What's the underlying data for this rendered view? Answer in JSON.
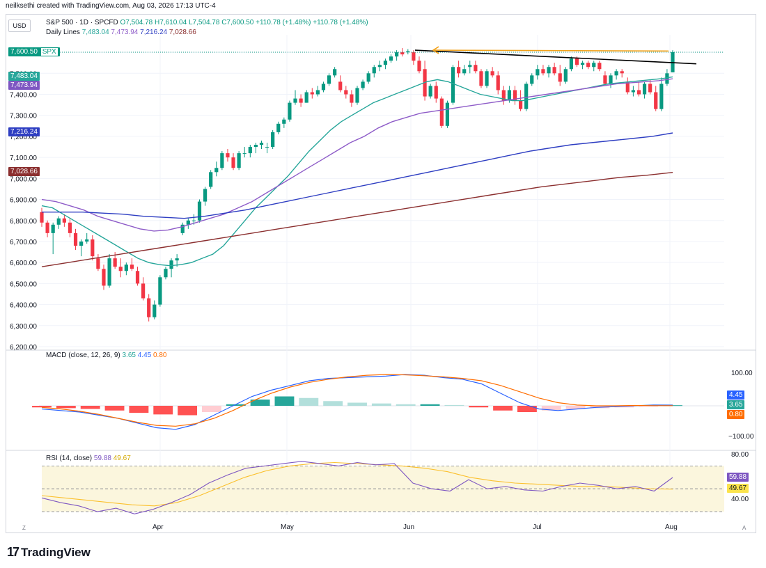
{
  "header": {
    "credit": "neilksethi created with TradingView.com, Aug 03, 2026 17:13 UTC-4"
  },
  "toolbar": {
    "currency": "USD"
  },
  "legend": {
    "symbol": "S&P 500 · 1D · SPCFD",
    "ohlc": "O7,504.78 H7,610.04 L7,504.78 C7,600.50 +110.78 (+1.48%) +110.78 (+1.48%)",
    "ma_title": "Daily Lines",
    "ma_values": [
      "7,483.04",
      "7,473.94",
      "7,216.24",
      "7,028.66"
    ]
  },
  "price_tags": {
    "last": "7,600.50",
    "last_symbol": "SPX",
    "ma20": "7,483.04",
    "ma50": "7,473.94",
    "ma100": "7,216.24",
    "ma200": "7,028.66"
  },
  "macd": {
    "label": "MACD (close, 12, 26, 9)",
    "v1": "3.65",
    "v2": "4.45",
    "v3": "0.80",
    "tags": {
      "macd": "4.45",
      "hist": "3.65",
      "signal": "0.80"
    },
    "axis": [
      "100.00",
      "−100.00"
    ]
  },
  "rsi": {
    "label": "RSI (14, close)",
    "v1": "59.88",
    "v2": "49.67",
    "tags": {
      "rsi": "59.88",
      "ma": "49.67"
    },
    "axis": [
      "80.00",
      "40.00"
    ]
  },
  "x_axis": [
    "Apr",
    "May",
    "Jun",
    "Jul",
    "Aug"
  ],
  "corners": {
    "z": "Z",
    "a": "A"
  },
  "brand": {
    "logo": "17",
    "name": "TradingView"
  },
  "colors": {
    "up": "#089981",
    "down": "#f23645",
    "ma20": "#26a69a",
    "ma50": "#8e5cc8",
    "ma100": "#2e3ec2",
    "ma200": "#8b2f2f",
    "macd": "#2962ff",
    "signal": "#ff6d00",
    "rsi": "#7e57c2",
    "rsima": "#fbc02d",
    "trend": "#000000",
    "arrow": "#f2a21b"
  },
  "chart_data": [
    {
      "type": "candlestick",
      "title": "S&P 500 · 1D · SPCFD",
      "ylim": [
        6200,
        7650
      ],
      "y_ticks": [
        "6,200.00",
        "6,300.00",
        "6,400.00",
        "6,500.00",
        "6,600.00",
        "6,700.00",
        "6,800.00",
        "6,900.00",
        "7,000.00",
        "7,100.00",
        "7,200.00",
        "7,300.00",
        "7,400.00",
        "7,500.00",
        "7,600.00"
      ],
      "x_labels": [
        "Apr",
        "May",
        "Jun",
        "Jul",
        "Aug"
      ],
      "candles_ohlc": [
        [
          6840,
          6860,
          6770,
          6790
        ],
        [
          6790,
          6800,
          6720,
          6740
        ],
        [
          6740,
          6790,
          6640,
          6780
        ],
        [
          6780,
          6820,
          6760,
          6810
        ],
        [
          6810,
          6830,
          6770,
          6790
        ],
        [
          6790,
          6810,
          6720,
          6740
        ],
        [
          6740,
          6760,
          6660,
          6680
        ],
        [
          6680,
          6710,
          6630,
          6700
        ],
        [
          6700,
          6740,
          6690,
          6710
        ],
        [
          6710,
          6730,
          6610,
          6630
        ],
        [
          6620,
          6640,
          6560,
          6570
        ],
        [
          6570,
          6590,
          6470,
          6490
        ],
        [
          6490,
          6640,
          6480,
          6620
        ],
        [
          6620,
          6650,
          6570,
          6580
        ],
        [
          6580,
          6620,
          6530,
          6560
        ],
        [
          6560,
          6600,
          6540,
          6590
        ],
        [
          6590,
          6620,
          6560,
          6570
        ],
        [
          6560,
          6580,
          6490,
          6500
        ],
        [
          6500,
          6530,
          6420,
          6430
        ],
        [
          6430,
          6450,
          6320,
          6340
        ],
        [
          6340,
          6420,
          6330,
          6400
        ],
        [
          6400,
          6540,
          6390,
          6530
        ],
        [
          6530,
          6580,
          6520,
          6570
        ],
        [
          6570,
          6620,
          6530,
          6610
        ],
        [
          6610,
          6640,
          6580,
          6620
        ],
        [
          6740,
          6790,
          6730,
          6780
        ],
        [
          6780,
          6810,
          6760,
          6800
        ],
        [
          6800,
          6830,
          6780,
          6800
        ],
        [
          6800,
          6900,
          6790,
          6890
        ],
        [
          6890,
          6960,
          6870,
          6950
        ],
        [
          6960,
          7040,
          6950,
          7030
        ],
        [
          7030,
          7080,
          7010,
          7050
        ],
        [
          7050,
          7130,
          7040,
          7120
        ],
        [
          7120,
          7140,
          7080,
          7100
        ],
        [
          7100,
          7120,
          7040,
          7050
        ],
        [
          7050,
          7130,
          7040,
          7120
        ],
        [
          7120,
          7150,
          7100,
          7120
        ],
        [
          7120,
          7160,
          7100,
          7150
        ],
        [
          7150,
          7170,
          7120,
          7160
        ],
        [
          7160,
          7180,
          7140,
          7170
        ],
        [
          7150,
          7170,
          7120,
          7150
        ],
        [
          7150,
          7230,
          7140,
          7220
        ],
        [
          7220,
          7270,
          7210,
          7260
        ],
        [
          7260,
          7290,
          7240,
          7280
        ],
        [
          7280,
          7370,
          7270,
          7360
        ],
        [
          7360,
          7420,
          7350,
          7380
        ],
        [
          7380,
          7400,
          7340,
          7360
        ],
        [
          7360,
          7420,
          7360,
          7410
        ],
        [
          7410,
          7430,
          7380,
          7400
        ],
        [
          7400,
          7440,
          7390,
          7420
        ],
        [
          7420,
          7460,
          7410,
          7450
        ],
        [
          7450,
          7500,
          7440,
          7490
        ],
        [
          7490,
          7530,
          7480,
          7520
        ],
        [
          7460,
          7490,
          7410,
          7420
        ],
        [
          7420,
          7440,
          7380,
          7400
        ],
        [
          7400,
          7420,
          7340,
          7360
        ],
        [
          7360,
          7440,
          7350,
          7430
        ],
        [
          7430,
          7470,
          7420,
          7460
        ],
        [
          7460,
          7510,
          7450,
          7500
        ],
        [
          7500,
          7540,
          7480,
          7530
        ],
        [
          7530,
          7560,
          7510,
          7540
        ],
        [
          7540,
          7570,
          7520,
          7560
        ],
        [
          7560,
          7590,
          7550,
          7580
        ],
        [
          7580,
          7610,
          7560,
          7600
        ],
        [
          7600,
          7620,
          7580,
          7590
        ],
        [
          7600,
          7615,
          7590,
          7605
        ],
        [
          7600,
          7610,
          7540,
          7560
        ],
        [
          7560,
          7580,
          7500,
          7510
        ],
        [
          7520,
          7560,
          7370,
          7390
        ],
        [
          7390,
          7450,
          7380,
          7440
        ],
        [
          7440,
          7460,
          7360,
          7380
        ],
        [
          7380,
          7390,
          7240,
          7250
        ],
        [
          7250,
          7370,
          7240,
          7360
        ],
        [
          7360,
          7540,
          7350,
          7530
        ],
        [
          7530,
          7560,
          7480,
          7500
        ],
        [
          7500,
          7540,
          7490,
          7520
        ],
        [
          7530,
          7560,
          7500,
          7540
        ],
        [
          7540,
          7560,
          7500,
          7510
        ],
        [
          7510,
          7520,
          7430,
          7440
        ],
        [
          7440,
          7520,
          7430,
          7510
        ],
        [
          7510,
          7530,
          7480,
          7490
        ],
        [
          7490,
          7510,
          7400,
          7420
        ],
        [
          7420,
          7440,
          7350,
          7370
        ],
        [
          7370,
          7440,
          7360,
          7420
        ],
        [
          7420,
          7440,
          7350,
          7370
        ],
        [
          7370,
          7420,
          7320,
          7330
        ],
        [
          7330,
          7460,
          7320,
          7450
        ],
        [
          7450,
          7500,
          7440,
          7490
        ],
        [
          7490,
          7540,
          7470,
          7520
        ],
        [
          7520,
          7540,
          7490,
          7500
        ],
        [
          7500,
          7540,
          7480,
          7530
        ],
        [
          7530,
          7550,
          7490,
          7500
        ],
        [
          7500,
          7540,
          7440,
          7460
        ],
        [
          7460,
          7530,
          7450,
          7520
        ],
        [
          7520,
          7580,
          7510,
          7570
        ],
        [
          7570,
          7580,
          7530,
          7540
        ],
        [
          7540,
          7560,
          7520,
          7550
        ],
        [
          7550,
          7560,
          7520,
          7530
        ],
        [
          7530,
          7560,
          7510,
          7550
        ],
        [
          7550,
          7560,
          7510,
          7520
        ],
        [
          7490,
          7510,
          7440,
          7450
        ],
        [
          7450,
          7500,
          7430,
          7490
        ],
        [
          7490,
          7520,
          7470,
          7510
        ],
        [
          7510,
          7520,
          7480,
          7500
        ],
        [
          7460,
          7480,
          7400,
          7410
        ],
        [
          7410,
          7440,
          7390,
          7420
        ],
        [
          7420,
          7460,
          7390,
          7400
        ],
        [
          7400,
          7460,
          7380,
          7450
        ],
        [
          7450,
          7470,
          7400,
          7410
        ],
        [
          7410,
          7440,
          7320,
          7330
        ],
        [
          7330,
          7480,
          7320,
          7450
        ],
        [
          7450,
          7520,
          7440,
          7500
        ],
        [
          7504.78,
          7610.04,
          7504.78,
          7600.5
        ]
      ],
      "series": [
        {
          "name": "7,483.04",
          "values": [
            6870,
            6860,
            6830,
            6800,
            6770,
            6740,
            6710,
            6680,
            6650,
            6620,
            6600,
            6590,
            6585,
            6590,
            6600,
            6620,
            6640,
            6680,
            6740,
            6800,
            6860,
            6910,
            6960,
            7010,
            7070,
            7130,
            7180,
            7230,
            7270,
            7300,
            7330,
            7360,
            7380,
            7400,
            7420,
            7440,
            7460,
            7470,
            7460,
            7440,
            7420,
            7400,
            7390,
            7380,
            7370,
            7370,
            7380,
            7390,
            7400,
            7410,
            7420,
            7430,
            7440,
            7450,
            7455,
            7460,
            7465,
            7470,
            7475,
            7483.04
          ]
        },
        {
          "name": "7,473.94",
          "values": [
            6900,
            6890,
            6870,
            6850,
            6820,
            6800,
            6780,
            6760,
            6750,
            6755,
            6770,
            6790,
            6810,
            6830,
            6860,
            6890,
            6930,
            6970,
            7010,
            7050,
            7090,
            7130,
            7170,
            7200,
            7240,
            7270,
            7290,
            7310,
            7320,
            7330,
            7340,
            7350,
            7360,
            7370,
            7380,
            7390,
            7400,
            7410,
            7420,
            7430,
            7440,
            7450,
            7455,
            7460,
            7465,
            7473.94
          ]
        },
        {
          "name": "7,216.24",
          "values": [
            6840,
            6840,
            6840,
            6835,
            6830,
            6820,
            6815,
            6810,
            6820,
            6835,
            6850,
            6870,
            6890,
            6910,
            6930,
            6950,
            6970,
            6990,
            7010,
            7030,
            7050,
            7070,
            7090,
            7110,
            7130,
            7145,
            7160,
            7170,
            7180,
            7190,
            7200,
            7216.24
          ]
        },
        {
          "name": "7,028.66",
          "values": [
            6580,
            6600,
            6620,
            6640,
            6660,
            6680,
            6700,
            6720,
            6740,
            6760,
            6780,
            6800,
            6820,
            6840,
            6860,
            6880,
            6900,
            6920,
            6940,
            6960,
            6975,
            6990,
            7005,
            7015,
            7028.66
          ]
        }
      ]
    },
    {
      "type": "macd",
      "title": "MACD (close, 12, 26, 9)",
      "y_ticks": [
        "100.00",
        "−100.00"
      ],
      "series": [
        {
          "name": "4.45",
          "values": [
            -20,
            -30,
            -40,
            -60,
            -80,
            -110,
            -140,
            -150,
            -120,
            -60,
            0,
            60,
            100,
            130,
            160,
            175,
            180,
            185,
            190,
            200,
            195,
            180,
            170,
            140,
            80,
            20,
            -20,
            -30,
            -20,
            -10,
            -5,
            0,
            5,
            4.45
          ]
        },
        {
          "name": "0.80",
          "values": [
            -10,
            -20,
            -35,
            -55,
            -80,
            -105,
            -125,
            -130,
            -115,
            -80,
            -30,
            30,
            80,
            120,
            150,
            170,
            185,
            195,
            200,
            198,
            192,
            185,
            175,
            160,
            130,
            90,
            50,
            20,
            5,
            0,
            0,
            2,
            1,
            0.8
          ]
        },
        {
          "name": "3.65",
          "values": [
            -10,
            -15,
            -20,
            -30,
            -45,
            -55,
            -60,
            -40,
            10,
            40,
            60,
            50,
            30,
            20,
            15,
            10,
            10,
            5,
            -10,
            -30,
            -40,
            -30,
            -20,
            -15,
            -10,
            -5,
            3.65
          ]
        }
      ]
    },
    {
      "type": "line",
      "title": "RSI (14, close)",
      "y_ticks": [
        "80.00",
        "40.00"
      ],
      "series": [
        {
          "name": "59.88",
          "values": [
            42,
            38,
            35,
            30,
            33,
            28,
            32,
            38,
            45,
            55,
            62,
            68,
            70,
            72,
            74,
            72,
            70,
            73,
            71,
            72,
            55,
            50,
            48,
            58,
            50,
            52,
            49,
            48,
            52,
            55,
            53,
            50,
            52,
            48,
            59.88
          ]
        },
        {
          "name": "49.67",
          "values": [
            44,
            42,
            40,
            38,
            36,
            35,
            38,
            44,
            52,
            60,
            66,
            70,
            72,
            73,
            72,
            71,
            70,
            68,
            65,
            60,
            57,
            55,
            54,
            53,
            52,
            52,
            51,
            50,
            49.67
          ]
        }
      ]
    }
  ]
}
